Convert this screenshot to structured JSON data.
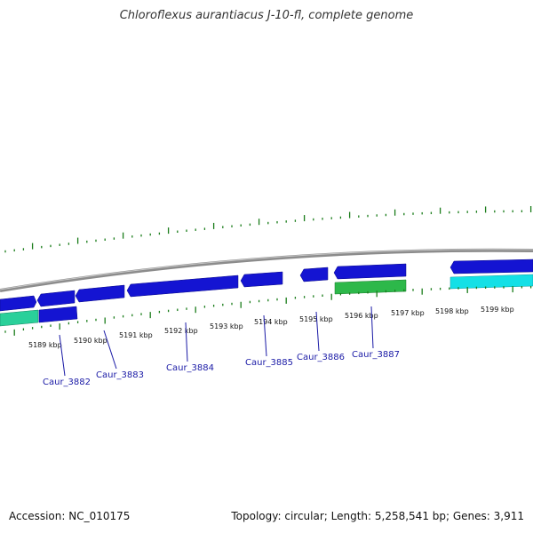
{
  "title": "Chloroflexus aurantiacus J-10-fl, complete genome",
  "footer": {
    "accession": "Accession: NC_010175",
    "summary": "Topology: circular; Length: 5,258,541 bp; Genes: 3,911"
  },
  "colors": {
    "backbone": "#8c8c8c",
    "cds_dark": "#1414d2",
    "cds_light": "#3a3aff",
    "green": "#2db84a",
    "teal": "#2ad09a",
    "cyan": "#14e0e6",
    "tick": "#1a7d1a",
    "label": "#1a1aa6"
  },
  "scale_labels": [
    "5189 kbp",
    "5190 kbp",
    "5191 kbp",
    "5192 kbp",
    "5193 kbp",
    "5194 kbp",
    "5195 kbp",
    "5196 kbp",
    "5197 kbp",
    "5198 kbp",
    "5199 kbp"
  ],
  "gene_labels": [
    "Caur_3882",
    "Caur_3883",
    "Caur_3884",
    "Caur_3885",
    "Caur_3886",
    "Caur_3887"
  ]
}
